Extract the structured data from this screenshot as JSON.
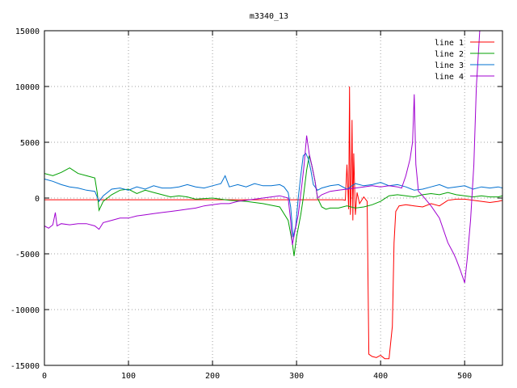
{
  "chart_data": {
    "type": "line",
    "title": "m3340_13",
    "xlabel": "",
    "ylabel": "",
    "xlim": [
      0,
      545
    ],
    "ylim": [
      -15000,
      15000
    ],
    "xticks": [
      0,
      100,
      200,
      300,
      400,
      500
    ],
    "yticks": [
      -15000,
      -10000,
      -5000,
      0,
      5000,
      10000,
      15000
    ],
    "grid": true,
    "legend_position": "top-right",
    "series": [
      {
        "name": "line 1",
        "color": "#ff0000",
        "points": [
          [
            0,
            -150
          ],
          [
            80,
            -150
          ],
          [
            160,
            -150
          ],
          [
            240,
            -150
          ],
          [
            300,
            -150
          ],
          [
            340,
            -150
          ],
          [
            355,
            -150
          ],
          [
            358,
            -200
          ],
          [
            360,
            3000
          ],
          [
            362,
            -1000
          ],
          [
            363,
            10000
          ],
          [
            364,
            -1500
          ],
          [
            365,
            500
          ],
          [
            366,
            7000
          ],
          [
            367,
            -2000
          ],
          [
            368,
            4000
          ],
          [
            370,
            -1500
          ],
          [
            372,
            500
          ],
          [
            375,
            -500
          ],
          [
            380,
            100
          ],
          [
            384,
            -300
          ],
          [
            386,
            -14000
          ],
          [
            390,
            -14200
          ],
          [
            395,
            -14300
          ],
          [
            400,
            -14100
          ],
          [
            405,
            -14400
          ],
          [
            410,
            -14400
          ],
          [
            414,
            -11500
          ],
          [
            416,
            -4000
          ],
          [
            418,
            -1200
          ],
          [
            422,
            -700
          ],
          [
            430,
            -600
          ],
          [
            440,
            -700
          ],
          [
            450,
            -800
          ],
          [
            460,
            -500
          ],
          [
            470,
            -700
          ],
          [
            480,
            -200
          ],
          [
            490,
            -100
          ],
          [
            500,
            -100
          ],
          [
            510,
            -200
          ],
          [
            520,
            -300
          ],
          [
            530,
            -400
          ],
          [
            540,
            -300
          ],
          [
            545,
            -200
          ]
        ]
      },
      {
        "name": "line 2",
        "color": "#00a000",
        "points": [
          [
            0,
            2200
          ],
          [
            10,
            2000
          ],
          [
            20,
            2300
          ],
          [
            30,
            2700
          ],
          [
            40,
            2200
          ],
          [
            50,
            2000
          ],
          [
            60,
            1800
          ],
          [
            63,
            400
          ],
          [
            65,
            -1100
          ],
          [
            70,
            -300
          ],
          [
            80,
            300
          ],
          [
            90,
            700
          ],
          [
            100,
            800
          ],
          [
            110,
            400
          ],
          [
            120,
            700
          ],
          [
            130,
            500
          ],
          [
            140,
            300
          ],
          [
            150,
            100
          ],
          [
            160,
            200
          ],
          [
            170,
            100
          ],
          [
            180,
            -100
          ],
          [
            200,
            0
          ],
          [
            220,
            -200
          ],
          [
            240,
            -300
          ],
          [
            260,
            -500
          ],
          [
            280,
            -800
          ],
          [
            290,
            -2000
          ],
          [
            295,
            -4000
          ],
          [
            297,
            -5200
          ],
          [
            300,
            -3500
          ],
          [
            305,
            -1500
          ],
          [
            308,
            0
          ],
          [
            312,
            2500
          ],
          [
            315,
            3800
          ],
          [
            318,
            3000
          ],
          [
            322,
            1500
          ],
          [
            325,
            0
          ],
          [
            330,
            -800
          ],
          [
            335,
            -1000
          ],
          [
            340,
            -900
          ],
          [
            350,
            -900
          ],
          [
            360,
            -700
          ],
          [
            370,
            -900
          ],
          [
            380,
            -800
          ],
          [
            390,
            -600
          ],
          [
            400,
            -300
          ],
          [
            410,
            200
          ],
          [
            420,
            300
          ],
          [
            430,
            200
          ],
          [
            440,
            100
          ],
          [
            450,
            300
          ],
          [
            460,
            400
          ],
          [
            470,
            300
          ],
          [
            480,
            500
          ],
          [
            490,
            300
          ],
          [
            500,
            200
          ],
          [
            510,
            100
          ],
          [
            520,
            200
          ],
          [
            530,
            100
          ],
          [
            540,
            100
          ],
          [
            545,
            200
          ]
        ]
      },
      {
        "name": "line 3",
        "color": "#0070d0",
        "points": [
          [
            0,
            1700
          ],
          [
            10,
            1500
          ],
          [
            20,
            1200
          ],
          [
            30,
            1000
          ],
          [
            40,
            900
          ],
          [
            50,
            700
          ],
          [
            60,
            600
          ],
          [
            65,
            -300
          ],
          [
            70,
            200
          ],
          [
            80,
            800
          ],
          [
            90,
            900
          ],
          [
            100,
            700
          ],
          [
            110,
            1000
          ],
          [
            120,
            800
          ],
          [
            130,
            1100
          ],
          [
            140,
            900
          ],
          [
            150,
            900
          ],
          [
            160,
            1000
          ],
          [
            170,
            1200
          ],
          [
            180,
            1000
          ],
          [
            190,
            900
          ],
          [
            200,
            1100
          ],
          [
            210,
            1300
          ],
          [
            215,
            2000
          ],
          [
            220,
            1000
          ],
          [
            230,
            1200
          ],
          [
            240,
            1000
          ],
          [
            250,
            1300
          ],
          [
            260,
            1100
          ],
          [
            270,
            1100
          ],
          [
            280,
            1200
          ],
          [
            285,
            1000
          ],
          [
            290,
            500
          ],
          [
            293,
            -800
          ],
          [
            296,
            -3500
          ],
          [
            299,
            -2500
          ],
          [
            302,
            0
          ],
          [
            305,
            2000
          ],
          [
            308,
            3800
          ],
          [
            311,
            4000
          ],
          [
            314,
            3500
          ],
          [
            317,
            2500
          ],
          [
            320,
            1200
          ],
          [
            325,
            700
          ],
          [
            330,
            900
          ],
          [
            340,
            1100
          ],
          [
            350,
            1200
          ],
          [
            360,
            800
          ],
          [
            370,
            1300
          ],
          [
            380,
            1100
          ],
          [
            390,
            1200
          ],
          [
            400,
            1400
          ],
          [
            410,
            1100
          ],
          [
            420,
            1200
          ],
          [
            430,
            1000
          ],
          [
            440,
            700
          ],
          [
            450,
            800
          ],
          [
            460,
            1000
          ],
          [
            470,
            1200
          ],
          [
            480,
            900
          ],
          [
            490,
            1000
          ],
          [
            500,
            1100
          ],
          [
            510,
            800
          ],
          [
            520,
            1000
          ],
          [
            530,
            900
          ],
          [
            540,
            1000
          ],
          [
            545,
            900
          ]
        ]
      },
      {
        "name": "line 4",
        "color": "#a000d0",
        "points": [
          [
            0,
            -2500
          ],
          [
            5,
            -2700
          ],
          [
            10,
            -2400
          ],
          [
            13,
            -1300
          ],
          [
            15,
            -2500
          ],
          [
            20,
            -2300
          ],
          [
            30,
            -2400
          ],
          [
            40,
            -2300
          ],
          [
            50,
            -2300
          ],
          [
            60,
            -2500
          ],
          [
            65,
            -2800
          ],
          [
            70,
            -2200
          ],
          [
            80,
            -2000
          ],
          [
            90,
            -1800
          ],
          [
            100,
            -1800
          ],
          [
            110,
            -1600
          ],
          [
            120,
            -1500
          ],
          [
            130,
            -1400
          ],
          [
            140,
            -1300
          ],
          [
            150,
            -1200
          ],
          [
            160,
            -1100
          ],
          [
            170,
            -1000
          ],
          [
            180,
            -900
          ],
          [
            190,
            -700
          ],
          [
            200,
            -600
          ],
          [
            210,
            -500
          ],
          [
            220,
            -500
          ],
          [
            230,
            -300
          ],
          [
            240,
            -200
          ],
          [
            250,
            -100
          ],
          [
            260,
            0
          ],
          [
            270,
            100
          ],
          [
            280,
            200
          ],
          [
            290,
            0
          ],
          [
            293,
            -2000
          ],
          [
            295,
            -4200
          ],
          [
            298,
            -3000
          ],
          [
            302,
            -1500
          ],
          [
            306,
            1000
          ],
          [
            309,
            3000
          ],
          [
            312,
            5600
          ],
          [
            315,
            4000
          ],
          [
            318,
            3000
          ],
          [
            322,
            1500
          ],
          [
            325,
            0
          ],
          [
            330,
            300
          ],
          [
            340,
            600
          ],
          [
            350,
            700
          ],
          [
            360,
            800
          ],
          [
            370,
            900
          ],
          [
            380,
            1000
          ],
          [
            390,
            1100
          ],
          [
            400,
            1000
          ],
          [
            410,
            1100
          ],
          [
            420,
            1000
          ],
          [
            425,
            900
          ],
          [
            430,
            2000
          ],
          [
            435,
            3500
          ],
          [
            438,
            5000
          ],
          [
            440,
            9300
          ],
          [
            442,
            3000
          ],
          [
            445,
            600
          ],
          [
            450,
            200
          ],
          [
            460,
            -700
          ],
          [
            470,
            -1800
          ],
          [
            480,
            -4000
          ],
          [
            487,
            -5000
          ],
          [
            490,
            -5500
          ],
          [
            495,
            -6500
          ],
          [
            500,
            -7600
          ],
          [
            503,
            -5500
          ],
          [
            507,
            -2000
          ],
          [
            511,
            3000
          ],
          [
            514,
            10000
          ],
          [
            518,
            15000
          ],
          [
            545,
            15000
          ]
        ]
      }
    ]
  }
}
